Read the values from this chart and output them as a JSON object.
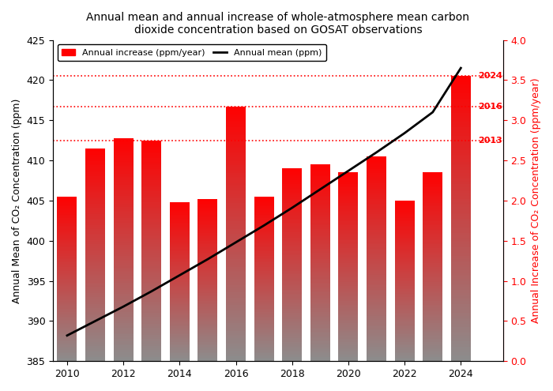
{
  "years": [
    2010,
    2011,
    2012,
    2013,
    2014,
    2015,
    2016,
    2017,
    2018,
    2019,
    2020,
    2021,
    2022,
    2023,
    2024
  ],
  "annual_mean": [
    388.2,
    390.0,
    391.8,
    393.7,
    395.7,
    397.7,
    399.8,
    401.9,
    404.1,
    406.4,
    408.7,
    411.0,
    413.4,
    416.0,
    421.5
  ],
  "annual_increase": [
    2.05,
    2.65,
    2.78,
    2.75,
    1.98,
    2.02,
    3.17,
    2.05,
    2.4,
    2.45,
    2.35,
    2.55,
    2.0,
    2.35,
    3.55
  ],
  "bar_color_top": "#ff0000",
  "bar_color_bottom": "#808080",
  "line_color": "#000000",
  "title_line1": "Annual mean and annual increase of whole-atmosphere mean carbon",
  "title_line2": "dioxide concentration based on GOSAT observations",
  "ylabel_left": "Annual Mean of CO₂ Concentration (ppm)",
  "ylabel_right": "Annual Increase of CO₂ Concentration (ppm/year)",
  "ylim_left": [
    385,
    425
  ],
  "ylim_right": [
    0.0,
    4.0
  ],
  "xlim": [
    2009.5,
    2025.5
  ],
  "yticks_left": [
    385,
    390,
    395,
    400,
    405,
    410,
    415,
    420,
    425
  ],
  "yticks_right": [
    0.0,
    0.5,
    1.0,
    1.5,
    2.0,
    2.5,
    3.0,
    3.5,
    4.0
  ],
  "xticks": [
    2010,
    2012,
    2014,
    2016,
    2018,
    2020,
    2022,
    2024
  ],
  "dotted_lines": [
    {
      "value": 2.75,
      "label": "2013"
    },
    {
      "value": 3.17,
      "label": "2016"
    },
    {
      "value": 3.55,
      "label": "2024"
    }
  ],
  "legend_bar_label": "Annual increase (ppm/year)",
  "legend_line_label": "Annual mean (ppm)",
  "bar_width": 0.7
}
